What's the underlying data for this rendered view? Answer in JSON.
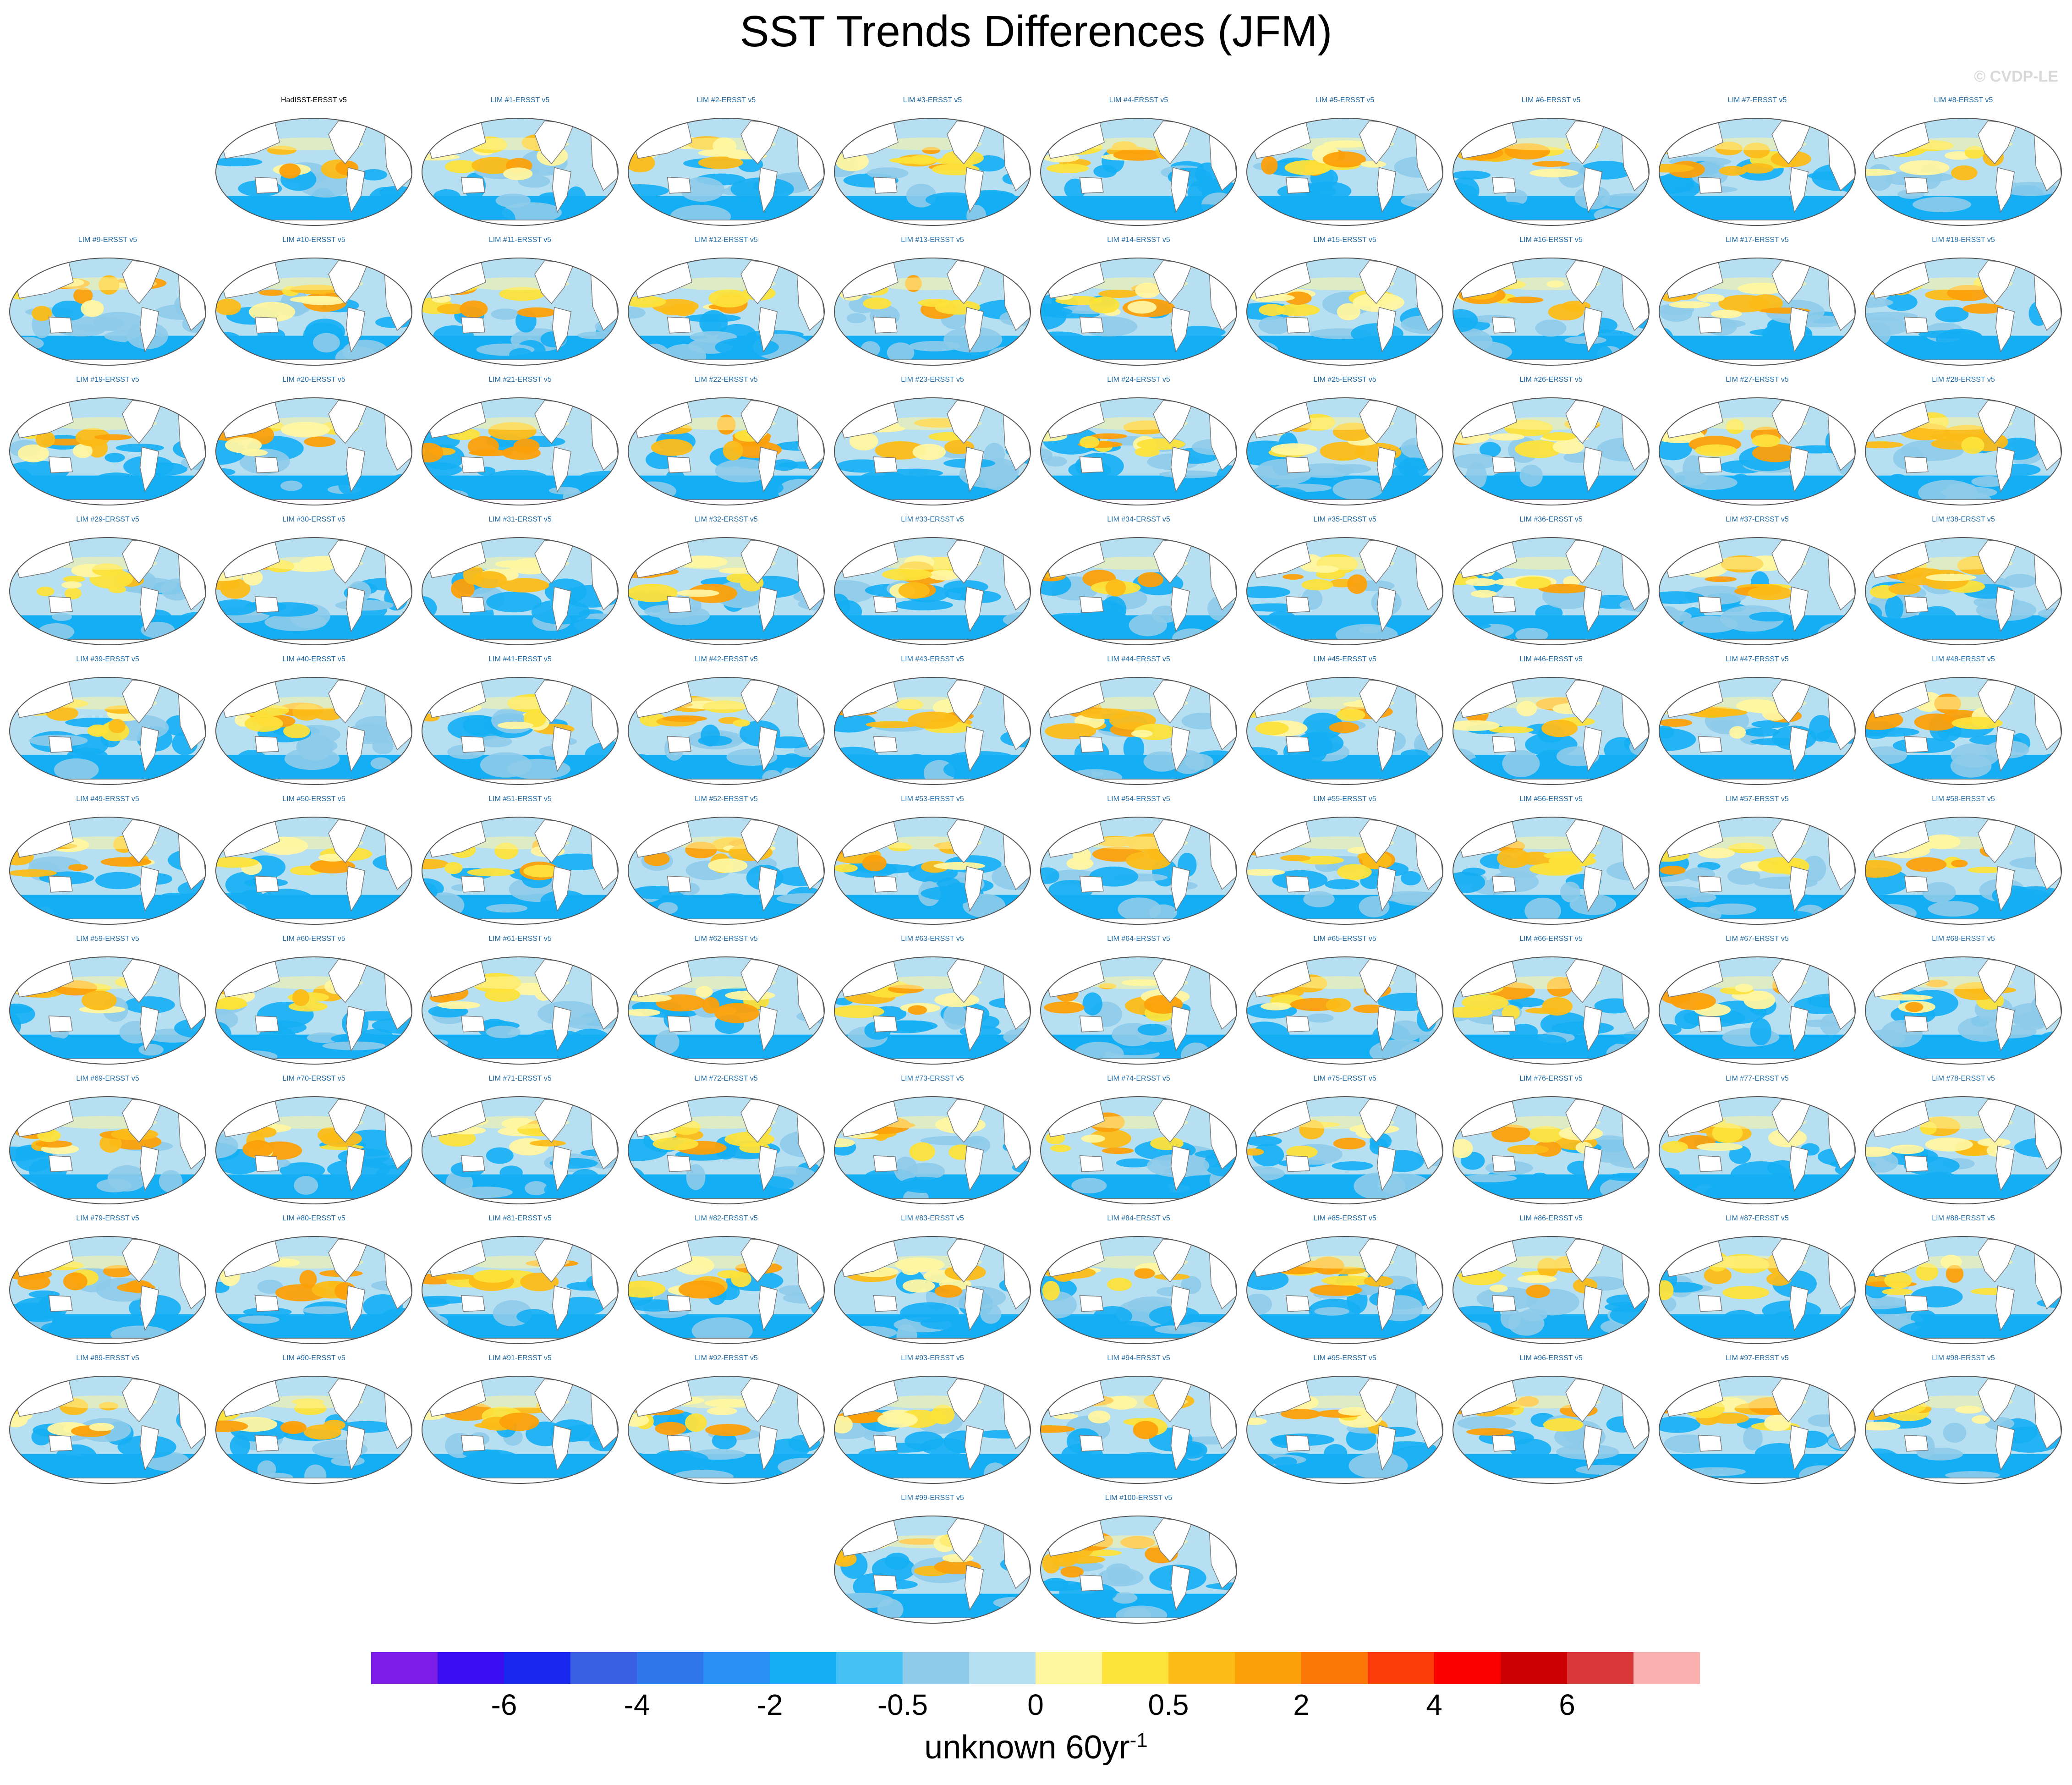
{
  "title": "SST Trends Differences (JFM)",
  "watermark": "© CVDP-LE",
  "colorbar": {
    "colors": [
      "#7d1de8",
      "#3a0ef0",
      "#1a28ef",
      "#3a5fe0",
      "#2f76ea",
      "#2b90f5",
      "#14aef4",
      "#45c1f3",
      "#8ecbea",
      "#b6e0f2",
      "#fff6a0",
      "#fde23a",
      "#fcbc18",
      "#fca00a",
      "#fc7708",
      "#fc3b0a",
      "#fc0000",
      "#cc0000",
      "#d83838",
      "#fbb0b0"
    ],
    "tick_labels": [
      "-6",
      "-4",
      "-2",
      "-0.5",
      "0",
      "0.5",
      "2",
      "4",
      "6"
    ],
    "units_main": "unknown 60yr",
    "units_sup": "-1"
  },
  "map_colors": {
    "land": "#ffffff",
    "coast": "#7a7a7a",
    "ocean_base": "#b6e0f2",
    "blue": "#14aef4",
    "blue_light": "#8ecbea",
    "yellow": "#fff6a0",
    "yellow_dark": "#fde23a",
    "orange": "#fcbc18",
    "orange_dark": "#fca00a"
  },
  "panels": [
    {
      "label": "HadISST-ERSST v5",
      "reference": true
    },
    {
      "label": "LIM #1-ERSST v5"
    },
    {
      "label": "LIM #2-ERSST v5"
    },
    {
      "label": "LIM #3-ERSST v5"
    },
    {
      "label": "LIM #4-ERSST v5"
    },
    {
      "label": "LIM #5-ERSST v5"
    },
    {
      "label": "LIM #6-ERSST v5"
    },
    {
      "label": "LIM #7-ERSST v5"
    },
    {
      "label": "LIM #8-ERSST v5"
    },
    {
      "label": "LIM #9-ERSST v5"
    },
    {
      "label": "LIM #10-ERSST v5"
    },
    {
      "label": "LIM #11-ERSST v5"
    },
    {
      "label": "LIM #12-ERSST v5"
    },
    {
      "label": "LIM #13-ERSST v5"
    },
    {
      "label": "LIM #14-ERSST v5"
    },
    {
      "label": "LIM #15-ERSST v5"
    },
    {
      "label": "LIM #16-ERSST v5"
    },
    {
      "label": "LIM #17-ERSST v5"
    },
    {
      "label": "LIM #18-ERSST v5"
    },
    {
      "label": "LIM #19-ERSST v5"
    },
    {
      "label": "LIM #20-ERSST v5"
    },
    {
      "label": "LIM #21-ERSST v5"
    },
    {
      "label": "LIM #22-ERSST v5"
    },
    {
      "label": "LIM #23-ERSST v5"
    },
    {
      "label": "LIM #24-ERSST v5"
    },
    {
      "label": "LIM #25-ERSST v5"
    },
    {
      "label": "LIM #26-ERSST v5"
    },
    {
      "label": "LIM #27-ERSST v5"
    },
    {
      "label": "LIM #28-ERSST v5"
    },
    {
      "label": "LIM #29-ERSST v5"
    },
    {
      "label": "LIM #30-ERSST v5"
    },
    {
      "label": "LIM #31-ERSST v5"
    },
    {
      "label": "LIM #32-ERSST v5"
    },
    {
      "label": "LIM #33-ERSST v5"
    },
    {
      "label": "LIM #34-ERSST v5"
    },
    {
      "label": "LIM #35-ERSST v5"
    },
    {
      "label": "LIM #36-ERSST v5"
    },
    {
      "label": "LIM #37-ERSST v5"
    },
    {
      "label": "LIM #38-ERSST v5"
    },
    {
      "label": "LIM #39-ERSST v5"
    },
    {
      "label": "LIM #40-ERSST v5"
    },
    {
      "label": "LIM #41-ERSST v5"
    },
    {
      "label": "LIM #42-ERSST v5"
    },
    {
      "label": "LIM #43-ERSST v5"
    },
    {
      "label": "LIM #44-ERSST v5"
    },
    {
      "label": "LIM #45-ERSST v5"
    },
    {
      "label": "LIM #46-ERSST v5"
    },
    {
      "label": "LIM #47-ERSST v5"
    },
    {
      "label": "LIM #48-ERSST v5"
    },
    {
      "label": "LIM #49-ERSST v5"
    },
    {
      "label": "LIM #50-ERSST v5"
    },
    {
      "label": "LIM #51-ERSST v5"
    },
    {
      "label": "LIM #52-ERSST v5"
    },
    {
      "label": "LIM #53-ERSST v5"
    },
    {
      "label": "LIM #54-ERSST v5"
    },
    {
      "label": "LIM #55-ERSST v5"
    },
    {
      "label": "LIM #56-ERSST v5"
    },
    {
      "label": "LIM #57-ERSST v5"
    },
    {
      "label": "LIM #58-ERSST v5"
    },
    {
      "label": "LIM #59-ERSST v5"
    },
    {
      "label": "LIM #60-ERSST v5"
    },
    {
      "label": "LIM #61-ERSST v5"
    },
    {
      "label": "LIM #62-ERSST v5"
    },
    {
      "label": "LIM #63-ERSST v5"
    },
    {
      "label": "LIM #64-ERSST v5"
    },
    {
      "label": "LIM #65-ERSST v5"
    },
    {
      "label": "LIM #66-ERSST v5"
    },
    {
      "label": "LIM #67-ERSST v5"
    },
    {
      "label": "LIM #68-ERSST v5"
    },
    {
      "label": "LIM #69-ERSST v5"
    },
    {
      "label": "LIM #70-ERSST v5"
    },
    {
      "label": "LIM #71-ERSST v5"
    },
    {
      "label": "LIM #72-ERSST v5"
    },
    {
      "label": "LIM #73-ERSST v5"
    },
    {
      "label": "LIM #74-ERSST v5"
    },
    {
      "label": "LIM #75-ERSST v5"
    },
    {
      "label": "LIM #76-ERSST v5"
    },
    {
      "label": "LIM #77-ERSST v5"
    },
    {
      "label": "LIM #78-ERSST v5"
    },
    {
      "label": "LIM #79-ERSST v5"
    },
    {
      "label": "LIM #80-ERSST v5"
    },
    {
      "label": "LIM #81-ERSST v5"
    },
    {
      "label": "LIM #82-ERSST v5"
    },
    {
      "label": "LIM #83-ERSST v5"
    },
    {
      "label": "LIM #84-ERSST v5"
    },
    {
      "label": "LIM #85-ERSST v5"
    },
    {
      "label": "LIM #86-ERSST v5"
    },
    {
      "label": "LIM #87-ERSST v5"
    },
    {
      "label": "LIM #88-ERSST v5"
    },
    {
      "label": "LIM #89-ERSST v5"
    },
    {
      "label": "LIM #90-ERSST v5"
    },
    {
      "label": "LIM #91-ERSST v5"
    },
    {
      "label": "LIM #92-ERSST v5"
    },
    {
      "label": "LIM #93-ERSST v5"
    },
    {
      "label": "LIM #94-ERSST v5"
    },
    {
      "label": "LIM #95-ERSST v5"
    },
    {
      "label": "LIM #96-ERSST v5"
    },
    {
      "label": "LIM #97-ERSST v5"
    },
    {
      "label": "LIM #98-ERSST v5"
    },
    {
      "label": "LIM #99-ERSST v5"
    },
    {
      "label": "LIM #100-ERSST v5"
    }
  ]
}
